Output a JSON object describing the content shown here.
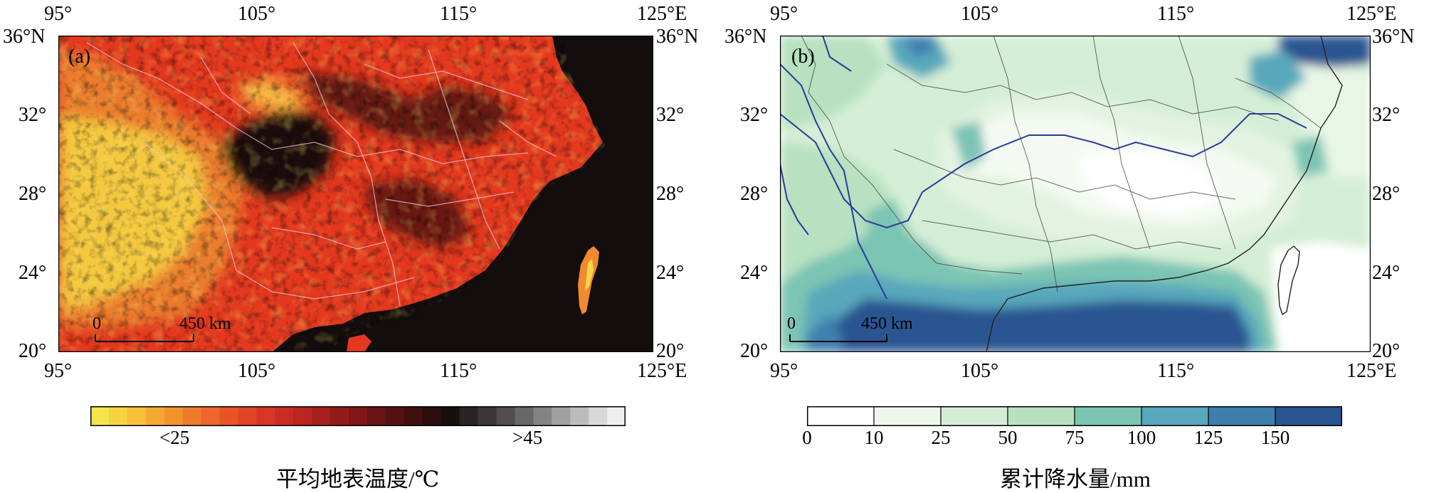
{
  "panel_a": {
    "label": "(a)",
    "x_ticks_top": [
      "95°",
      "105°",
      "115°",
      "125°E"
    ],
    "x_ticks_bottom": [
      "95°",
      "105°",
      "115°",
      "125°E"
    ],
    "y_ticks_left": [
      "36°N",
      "32°",
      "28°",
      "24°",
      "20°"
    ],
    "y_ticks_right": [
      "36°N",
      "32°",
      "28°",
      "24°",
      "20°"
    ],
    "scale_start": "0",
    "scale_end": "450 km",
    "colorbar": {
      "low_label": "<25",
      "high_label": ">45",
      "title": "平均地表温度/℃",
      "colors": [
        "#f2e64a",
        "#f4d43f",
        "#f5c23a",
        "#f4a934",
        "#f29330",
        "#ef7c2c",
        "#ec6729",
        "#e85427",
        "#e14325",
        "#d63623",
        "#c92d22",
        "#b92520",
        "#a71f1e",
        "#931a1b",
        "#7f1718",
        "#6a1414",
        "#551212",
        "#401010",
        "#2b0f0e",
        "#1a0e0d",
        "#2a2424",
        "#3d3838",
        "#524e4e",
        "#6a6767",
        "#858282",
        "#a19f9f",
        "#bdbcbc",
        "#d8d8d8",
        "#efefef"
      ]
    }
  },
  "panel_b": {
    "label": "(b)",
    "x_ticks_top": [
      "95°",
      "105°",
      "115°",
      "125°E"
    ],
    "x_ticks_bottom": [
      "95°",
      "105°",
      "115°",
      "125°E"
    ],
    "y_ticks_left": [
      "36°N",
      "32°",
      "28°",
      "24°",
      "20°"
    ],
    "y_ticks_right": [
      "36°N",
      "32°",
      "28°",
      "24°",
      "20°"
    ],
    "scale_start": "0",
    "scale_end": "450 km",
    "colorbar": {
      "tick_labels": [
        "0",
        "10",
        "25",
        "50",
        "75",
        "100",
        "125",
        "150"
      ],
      "title": "累计降水量/mm",
      "colors": [
        "#ffffff",
        "#ecf7ea",
        "#d4eed5",
        "#b7e1c0",
        "#7cc4b4",
        "#58a7bb",
        "#3f7fae",
        "#2b5591"
      ]
    }
  }
}
